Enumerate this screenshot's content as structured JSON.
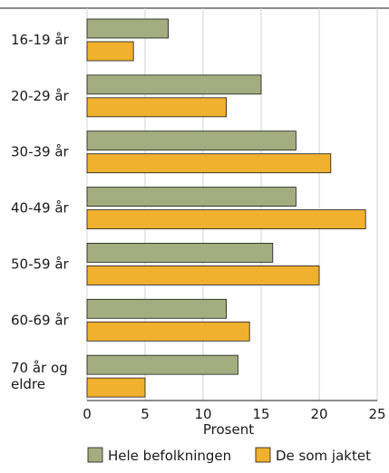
{
  "chart_data": {
    "type": "bar",
    "orientation": "horizontal",
    "title": "",
    "xlabel": "Prosent",
    "ylabel": "",
    "xlim": [
      0,
      25
    ],
    "xticks": [
      "0",
      "5",
      "10",
      "15",
      "20",
      "25"
    ],
    "grid": true,
    "legend_position": "bottom",
    "categories": [
      "16-19 år",
      "20-29 år",
      "30-39 år",
      "40-49 år",
      "50-59 år",
      "60-69 år",
      "70 år og eldre"
    ],
    "category_lines": [
      [
        "16-19 år"
      ],
      [
        "20-29 år"
      ],
      [
        "30-39 år"
      ],
      [
        "40-49 år"
      ],
      [
        "50-59 år"
      ],
      [
        "60-69 år"
      ],
      [
        "70 år og",
        "eldre"
      ]
    ],
    "series": [
      {
        "name": "Hele befolkningen",
        "color": "#a3ad7f",
        "values": [
          7,
          15,
          18,
          18,
          16,
          12,
          13
        ]
      },
      {
        "name": "De som jaktet",
        "color": "#f0b12e",
        "values": [
          4,
          12,
          21,
          24,
          20,
          14,
          5
        ]
      }
    ]
  }
}
